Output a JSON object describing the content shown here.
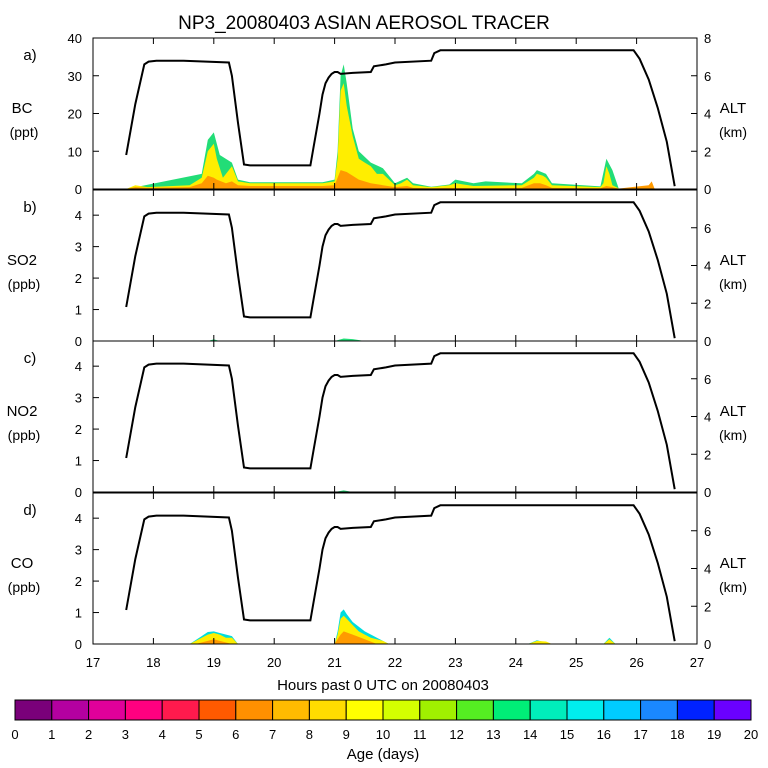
{
  "title": "NP3_20080403 ASIAN AEROSOL TRACER",
  "colors": {
    "altitude_line": "#000000",
    "age_scale": [
      "#7a007a",
      "#b400a0",
      "#e0009a",
      "#ff0080",
      "#ff1a4d",
      "#ff5a00",
      "#ff9000",
      "#ffbb00",
      "#ffdd00",
      "#ffff00",
      "#d4ff00",
      "#a0f000",
      "#55ee22",
      "#00ee77",
      "#00eebb",
      "#00eeee",
      "#00ccff",
      "#1a88ff",
      "#0022ff",
      "#6a00ff"
    ],
    "stack_fill": {
      "orange": "#ff9a00",
      "yellow": "#ffee00",
      "lime": "#bff020",
      "green": "#22dd77",
      "cyan": "#00dddd",
      "blue": "#2299ff"
    }
  },
  "chart_data": {
    "type": "area",
    "x_axis": {
      "label": "Hours past 0 UTC on 20080403",
      "range": [
        17,
        27
      ],
      "ticks": [
        17,
        18,
        19,
        20,
        21,
        22,
        23,
        24,
        25,
        26,
        27
      ]
    },
    "altitude": {
      "x": [
        17.55,
        17.7,
        17.85,
        17.92,
        18.05,
        18.5,
        19.25,
        19.3,
        19.4,
        19.5,
        19.6,
        20.6,
        20.65,
        20.75,
        20.8,
        20.85,
        20.9,
        20.95,
        21.0,
        21.05,
        21.1,
        21.3,
        21.6,
        21.65,
        21.85,
        22.0,
        22.6,
        22.65,
        22.75,
        25.95,
        26.05,
        26.2,
        26.35,
        26.5,
        26.63
      ],
      "y": [
        1.8,
        4.5,
        6.6,
        6.75,
        6.8,
        6.8,
        6.7,
        6.0,
        3.5,
        1.3,
        1.25,
        1.25,
        2.2,
        4.0,
        5.0,
        5.6,
        5.9,
        6.1,
        6.2,
        6.2,
        6.1,
        6.15,
        6.2,
        6.5,
        6.6,
        6.7,
        6.8,
        7.2,
        7.35,
        7.35,
        6.9,
        5.8,
        4.3,
        2.5,
        0.15
      ]
    },
    "panels": [
      {
        "label": "a)",
        "species": "BC",
        "unit": "(ppt)",
        "ylim": [
          0,
          40
        ],
        "yticks": [
          0,
          10,
          20,
          30,
          40
        ],
        "right_label": "ALT",
        "right_unit": "(km)",
        "right_ylim": [
          0,
          8
        ],
        "right_ticks": [
          0,
          2,
          4,
          6,
          8
        ],
        "series": [
          {
            "color": "orange",
            "x": [
              17.55,
              17.7,
              17.9,
              18.6,
              18.8,
              18.9,
              19.0,
              19.05,
              19.2,
              19.3,
              19.4,
              19.6,
              20.0,
              20.5,
              20.8,
              21.0,
              21.05,
              21.1,
              21.2,
              21.3,
              21.4,
              21.6,
              21.8,
              22.0,
              22.2,
              22.3,
              22.6,
              22.9,
              23.3,
              24.1,
              24.3,
              24.4,
              24.5,
              24.6,
              25.4,
              25.5,
              25.6,
              25.7,
              26.2,
              26.25,
              26.3
            ],
            "values": [
              0,
              0.5,
              0.3,
              0.5,
              1.5,
              3.5,
              3.0,
              2.5,
              1.5,
              2.0,
              1.0,
              0.8,
              0.8,
              0.8,
              0.8,
              1.0,
              3.0,
              5.0,
              4.5,
              3.5,
              2.5,
              1.5,
              1.0,
              0.5,
              0.8,
              0.3,
              0.2,
              0.3,
              0.2,
              0.3,
              1.5,
              1.5,
              1.0,
              0.3,
              0.2,
              0.8,
              0.5,
              0.1,
              1.0,
              2.0,
              0
            ]
          },
          {
            "color": "yellow",
            "x": [
              17.55,
              17.7,
              17.9,
              18.6,
              18.8,
              18.9,
              19.0,
              19.05,
              19.15,
              19.25,
              19.3,
              19.4,
              19.6,
              20.0,
              20.5,
              20.8,
              21.0,
              21.05,
              21.1,
              21.15,
              21.2,
              21.25,
              21.3,
              21.4,
              21.5,
              21.6,
              21.7,
              21.8,
              21.9,
              22.0,
              22.1,
              22.2,
              22.3,
              22.6,
              22.9,
              23.0,
              23.3,
              24.1,
              24.3,
              24.35,
              24.45,
              24.5,
              24.6,
              25.4,
              25.45,
              25.5,
              25.55,
              25.6,
              25.7
            ],
            "values": [
              0,
              1.0,
              0.5,
              1.0,
              3.0,
              10.0,
              12.0,
              8.0,
              3.0,
              5.0,
              6.0,
              2.0,
              1.5,
              1.5,
              1.5,
              1.5,
              2.0,
              8.0,
              26.0,
              28.0,
              22.0,
              18.0,
              14.0,
              8.0,
              7.0,
              6.0,
              4.0,
              4.0,
              2.5,
              1.0,
              1.5,
              2.5,
              1.0,
              0.5,
              1.0,
              1.5,
              0.8,
              1.0,
              3.0,
              4.0,
              3.5,
              3.0,
              1.0,
              0.5,
              1.5,
              6.0,
              4.0,
              1.0,
              0.2
            ]
          },
          {
            "color": "green",
            "x": [
              17.55,
              18.8,
              18.9,
              19.0,
              19.1,
              19.3,
              19.4,
              19.6,
              20.8,
              21.0,
              21.05,
              21.1,
              21.15,
              21.2,
              21.3,
              21.4,
              21.6,
              21.8,
              22.0,
              22.2,
              22.3,
              22.6,
              22.9,
              23.0,
              23.3,
              23.5,
              24.1,
              24.3,
              24.35,
              24.5,
              24.6,
              25.4,
              25.5,
              25.6,
              25.7
            ],
            "values": [
              0,
              4.0,
              13.0,
              15.0,
              9.0,
              7.0,
              2.5,
              1.8,
              1.8,
              2.5,
              10.0,
              30.0,
              33.0,
              28.0,
              16.0,
              10.0,
              7.0,
              5.5,
              1.5,
              3.0,
              1.5,
              0.6,
              1.2,
              2.5,
              1.5,
              2.0,
              1.5,
              4.0,
              5.0,
              4.0,
              1.5,
              0.7,
              8.0,
              5.0,
              0.3
            ]
          }
        ]
      },
      {
        "label": "b)",
        "species": "SO2",
        "unit": "(ppb)",
        "ylim": [
          0,
          4.8
        ],
        "yticks": [
          0,
          1,
          2,
          3,
          4
        ],
        "right_label": "ALT",
        "right_unit": "(km)",
        "right_ylim": [
          0,
          8
        ],
        "right_ticks": [
          0,
          2,
          4,
          6
        ],
        "series": [
          {
            "color": "green",
            "x": [
              18.9,
              19.0,
              19.1,
              21.0,
              21.15,
              21.3,
              21.5
            ],
            "values": [
              0,
              0.05,
              0,
              0,
              0.08,
              0.06,
              0
            ]
          }
        ]
      },
      {
        "label": "c)",
        "species": "NO2",
        "unit": "(ppb)",
        "ylim": [
          0,
          4.8
        ],
        "yticks": [
          0,
          1,
          2,
          3,
          4
        ],
        "right_label": "ALT",
        "right_unit": "(km)",
        "right_ylim": [
          0,
          8
        ],
        "right_ticks": [
          0,
          2,
          4,
          6
        ],
        "series": [
          {
            "color": "green",
            "x": [
              21.0,
              21.15,
              21.3
            ],
            "values": [
              0,
              0.05,
              0
            ]
          }
        ]
      },
      {
        "label": "d)",
        "species": "CO",
        "unit": "(ppb)",
        "ylim": [
          0,
          4.8
        ],
        "yticks": [
          0,
          1,
          2,
          3,
          4
        ],
        "right_label": "ALT",
        "right_unit": "(km)",
        "right_ylim": [
          0,
          8
        ],
        "right_ticks": [
          0,
          2,
          4,
          6
        ],
        "series": [
          {
            "color": "orange",
            "x": [
              18.7,
              18.9,
              19.0,
              19.1,
              19.3,
              21.0,
              21.1,
              21.15,
              21.3,
              21.5,
              21.7
            ],
            "values": [
              0,
              0.1,
              0.15,
              0.1,
              0,
              0,
              0.3,
              0.4,
              0.3,
              0.15,
              0
            ]
          },
          {
            "color": "yellow",
            "x": [
              18.6,
              18.8,
              18.9,
              19.0,
              19.1,
              19.2,
              19.3,
              19.4,
              21.0,
              21.05,
              21.1,
              21.15,
              21.2,
              21.3,
              21.4,
              21.5,
              21.6,
              21.8,
              21.9,
              24.2,
              24.35,
              24.5,
              24.6,
              25.45,
              25.55,
              25.65
            ],
            "values": [
              0,
              0.2,
              0.3,
              0.35,
              0.3,
              0.2,
              0.2,
              0,
              0,
              0.3,
              0.8,
              0.9,
              0.8,
              0.6,
              0.4,
              0.3,
              0.2,
              0.1,
              0,
              0,
              0.1,
              0.08,
              0,
              0,
              0.15,
              0
            ]
          },
          {
            "color": "cyan",
            "x": [
              18.6,
              18.8,
              18.9,
              19.0,
              19.1,
              19.3,
              19.4,
              21.0,
              21.05,
              21.1,
              21.15,
              21.2,
              21.3,
              21.5,
              21.7,
              21.9,
              24.2,
              24.35,
              24.6,
              25.45,
              25.55,
              25.65
            ],
            "values": [
              0,
              0.25,
              0.38,
              0.4,
              0.35,
              0.25,
              0,
              0,
              0.4,
              1.0,
              1.1,
              0.95,
              0.7,
              0.4,
              0.2,
              0,
              0,
              0.12,
              0,
              0,
              0.2,
              0
            ]
          }
        ]
      }
    ],
    "colorbar": {
      "label": "Age (days)",
      "ticks": [
        0,
        1,
        2,
        3,
        4,
        5,
        6,
        7,
        8,
        9,
        10,
        11,
        12,
        13,
        14,
        15,
        16,
        17,
        18,
        19,
        20
      ]
    }
  }
}
